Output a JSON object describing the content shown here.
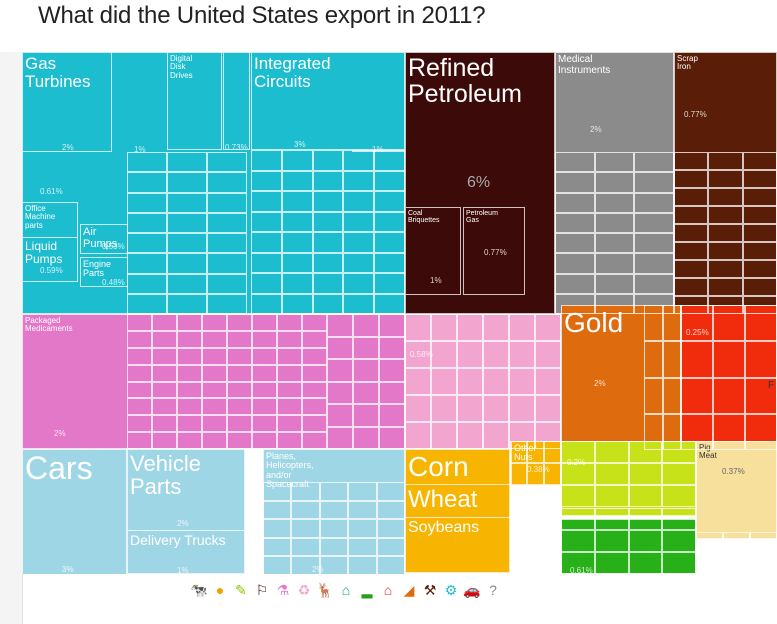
{
  "title": "What did the United States export in 2011?",
  "side_mark": "F",
  "colors": {
    "machinery": "#1cbdcf",
    "petroleum": "#3c0a08",
    "instruments": "#8b8b8b",
    "metals": "#5a1e08",
    "chemicals": "#e478c8",
    "plastics": "#f2a6cf",
    "stones": "#df6b0f",
    "stones_red": "#f02c0c",
    "transport": "#9fd6e6",
    "vegetable": "#f7b400",
    "foodstuffs": "#c8e21a",
    "animal": "#f6e09c",
    "greens": "#28b018"
  },
  "chart_data": {
    "type": "treemap",
    "title": "What did the United States export in 2011?",
    "items": [
      {
        "label": "Gas Turbines",
        "value": 2,
        "value_text": "2%"
      },
      {
        "label": "Digital Disk Drives",
        "value": 1,
        "value_text": "1%"
      },
      {
        "label": "Integrated Circuits",
        "value": 3,
        "value_text": "3%"
      },
      {
        "label": "Office Machine parts",
        "value": 0.61,
        "value_text": "0.61%"
      },
      {
        "label": "Liquid Pumps",
        "value": 0.59,
        "value_text": "0.59%"
      },
      {
        "label": "Air Pumps",
        "value": 0.53,
        "value_text": "0.53%"
      },
      {
        "label": "Engine Parts",
        "value": 0.48,
        "value_text": "0.48%"
      },
      {
        "label": "Refined Petroleum",
        "value": 6,
        "value_text": "6%"
      },
      {
        "label": "Coal Briquettes",
        "value": 1,
        "value_text": "1%"
      },
      {
        "label": "Petroleum Gas",
        "value": 0.77,
        "value_text": "0.77%"
      },
      {
        "label": "Medical Instruments",
        "value": 2,
        "value_text": "2%"
      },
      {
        "label": "Scrap Iron",
        "value": 0.77,
        "value_text": "0.77%"
      },
      {
        "label": "Packaged Medicaments",
        "value": 2,
        "value_text": "2%"
      },
      {
        "label": "Gold",
        "value": 2,
        "value_text": "2%"
      },
      {
        "label": "Cars",
        "value": 3,
        "value_text": "3%"
      },
      {
        "label": "Vehicle Parts",
        "value": 2,
        "value_text": "2%"
      },
      {
        "label": "Delivery Trucks",
        "value": 1,
        "value_text": "1%"
      },
      {
        "label": "Planes, Helicopters, and/or Spacecraft",
        "value": 2,
        "value_text": "2%"
      },
      {
        "label": "Corn",
        "value": null,
        "value_text": ""
      },
      {
        "label": "Wheat",
        "value": null,
        "value_text": ""
      },
      {
        "label": "Soybeans",
        "value": null,
        "value_text": ""
      },
      {
        "label": "Other Nuts",
        "value": 0.38,
        "value_text": "0.38%"
      },
      {
        "label": "Pig Meat",
        "value": 0.37,
        "value_text": "0.37%"
      }
    ]
  },
  "legend": [
    {
      "icon": "cow-icon",
      "glyph": "🐄",
      "color": "#e8c96a"
    },
    {
      "icon": "orange-icon",
      "glyph": "●",
      "color": "#f0a000"
    },
    {
      "icon": "leaf-icon",
      "glyph": "✎",
      "color": "#8bc400"
    },
    {
      "icon": "oil-derrick-icon",
      "glyph": "⚐",
      "color": "#3c0a08"
    },
    {
      "icon": "flask-icon",
      "glyph": "⚗",
      "color": "#e478c8"
    },
    {
      "icon": "recycle-icon",
      "glyph": "♻",
      "color": "#f2a6cf"
    },
    {
      "icon": "deer-icon",
      "glyph": "🦌",
      "color": "#b6d47a"
    },
    {
      "icon": "sewing-machine-icon",
      "glyph": "⌂",
      "color": "#1ca084"
    },
    {
      "icon": "shoe-icon",
      "glyph": "▂",
      "color": "#28a018"
    },
    {
      "icon": "house-icon",
      "glyph": "⌂",
      "color": "#e0302c"
    },
    {
      "icon": "gem-icon",
      "glyph": "◢",
      "color": "#df6b0f"
    },
    {
      "icon": "tools-icon",
      "glyph": "⚒",
      "color": "#5a1e08"
    },
    {
      "icon": "gear-icon",
      "glyph": "⚙",
      "color": "#1cbdcf"
    },
    {
      "icon": "car-icon",
      "glyph": "🚗",
      "color": "#9fd6e6"
    },
    {
      "icon": "question-icon",
      "glyph": "?",
      "color": "#888888"
    }
  ],
  "cells": [
    {
      "name": "machinery-block",
      "c": "machinery"
    },
    {
      "label": "Gas\nTurbines",
      "pct": "2%",
      "c": "machinery"
    },
    {
      "label": "Digital\nDisk\nDrives",
      "pct": "1%",
      "c": "machinery"
    },
    {
      "label": "Integrated\nCircuits",
      "pct": "3%",
      "c": "machinery"
    },
    {
      "pct": "0.73%",
      "c": "machinery"
    },
    {
      "pct": "1%",
      "c": "machinery"
    },
    {
      "label": "Office\nMachine\nparts",
      "pct": "0.61%",
      "c": "machinery"
    },
    {
      "label": "Liquid\nPumps",
      "pct": "0.59%",
      "c": "machinery"
    },
    {
      "label": "Air\nPumps",
      "pct": "0.53%",
      "c": "machinery"
    },
    {
      "label": "Engine\nParts",
      "pct": "0.48%",
      "c": "machinery"
    },
    {
      "label": "Refined\nPetroleum",
      "pct": "6%",
      "c": "petroleum"
    },
    {
      "label": "Coal\nBriquettes",
      "pct": "1%",
      "c": "petroleum"
    },
    {
      "label": "Petroleum\nGas",
      "pct": "0.77%",
      "c": "petroleum"
    },
    {
      "label": "Medical\nInstruments",
      "pct": "2%",
      "c": "instruments"
    },
    {
      "label": "Scrap\nIron",
      "pct": "0.77%",
      "c": "metals"
    },
    {
      "label": "Packaged\nMedicaments",
      "pct": "2%",
      "c": "chemicals"
    },
    {
      "pct": "0.58%",
      "c": "plastics"
    },
    {
      "label": "Gold",
      "pct": "2%",
      "c": "stones"
    },
    {
      "pct": "0.25%",
      "c": "stones_red"
    },
    {
      "label": "Cars",
      "pct": "3%",
      "c": "transport"
    },
    {
      "label": "Vehicle\nParts",
      "pct": "2%",
      "c": "transport"
    },
    {
      "label": "Delivery Trucks",
      "pct": "1%",
      "c": "transport"
    },
    {
      "label": "Planes,\nHelicopters,\nand/or\nSpacecraft",
      "pct": "2%",
      "c": "transport"
    },
    {
      "label": "Corn",
      "c": "vegetable"
    },
    {
      "label": "Wheat",
      "c": "vegetable"
    },
    {
      "label": "Soybeans",
      "c": "vegetable"
    },
    {
      "label": "Other\nNuts",
      "pct": "0.38%",
      "c": "vegetable"
    },
    {
      "pct": "0.2%",
      "c": "foodstuffs"
    },
    {
      "label": "Pig\nMeat",
      "pct": "0.37%",
      "c": "animal"
    },
    {
      "pct": "0.61%",
      "c": "greens"
    }
  ]
}
